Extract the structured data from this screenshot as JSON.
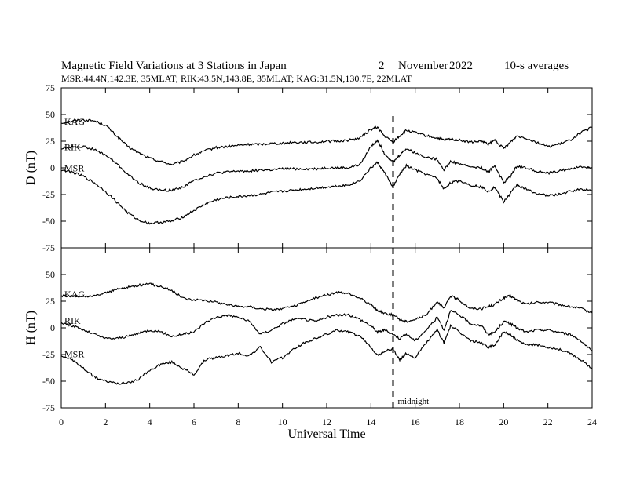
{
  "chart_data": [
    {
      "type": "line",
      "title": "Magnetic Field Variations at 3 Stations in Japan",
      "date_day": "2",
      "date_month": "November",
      "date_year": "2022",
      "averaging": "10-s averages",
      "subtitle": "MSR:44.4N,142.3E, 35MLAT;  RIK:43.5N,143.8E, 35MLAT;  KAG:31.5N,130.7E, 22MLAT",
      "ylabel": "D (nT)",
      "xlabel": "Universal Time",
      "xlim": [
        0,
        24
      ],
      "ylim": [
        -75,
        75
      ],
      "xticks": [
        0,
        2,
        4,
        6,
        8,
        10,
        12,
        14,
        16,
        18,
        20,
        22,
        24
      ],
      "yticks": [
        75,
        50,
        25,
        0,
        -25,
        -50,
        -75
      ],
      "series": [
        {
          "name": "KAG",
          "x": [
            0,
            0.5,
            1,
            1.5,
            2,
            2.5,
            3,
            3.5,
            4,
            4.5,
            5,
            5.5,
            6,
            6.5,
            7,
            7.5,
            8,
            8.5,
            9,
            9.5,
            10,
            10.5,
            11,
            11.5,
            12,
            12.5,
            13,
            13.5,
            14,
            14.3,
            14.6,
            15,
            15.3,
            15.6,
            16,
            16.5,
            17,
            17.3,
            17.6,
            18,
            18.5,
            19,
            19.3,
            19.6,
            20,
            20.3,
            20.6,
            21,
            21.5,
            22,
            22.5,
            23,
            23.5,
            24
          ],
          "values": [
            42,
            44,
            45,
            44,
            40,
            30,
            20,
            14,
            9,
            6,
            3,
            6,
            12,
            16,
            19,
            20,
            21,
            22,
            22,
            23,
            23,
            24,
            24,
            24,
            25,
            25,
            26,
            28,
            36,
            38,
            30,
            24,
            30,
            35,
            33,
            30,
            28,
            26,
            27,
            26,
            24,
            25,
            22,
            26,
            18,
            24,
            30,
            28,
            24,
            20,
            22,
            26,
            33,
            38
          ]
        },
        {
          "name": "RIK",
          "x": [
            0,
            0.5,
            1,
            1.5,
            2,
            2.5,
            3,
            3.5,
            4,
            4.5,
            5,
            5.5,
            6,
            6.5,
            7,
            7.5,
            8,
            8.5,
            9,
            9.5,
            10,
            10.5,
            11,
            11.5,
            12,
            12.5,
            13,
            13.5,
            14,
            14.3,
            14.6,
            15,
            15.3,
            15.6,
            16,
            16.5,
            17,
            17.3,
            17.6,
            18,
            18.5,
            19,
            19.3,
            19.6,
            20,
            20.3,
            20.6,
            21,
            21.5,
            22,
            22.5,
            23,
            23.5,
            24
          ],
          "values": [
            18,
            20,
            20,
            17,
            12,
            4,
            -6,
            -14,
            -19,
            -21,
            -21,
            -18,
            -12,
            -8,
            -5,
            -4,
            -3,
            -3,
            -2,
            -2,
            -1,
            -1,
            -1,
            -1,
            0,
            0,
            0,
            3,
            20,
            26,
            14,
            5,
            12,
            18,
            14,
            10,
            8,
            -2,
            6,
            4,
            1,
            0,
            -4,
            2,
            -14,
            -8,
            2,
            0,
            -3,
            -5,
            -3,
            -1,
            1,
            0
          ]
        },
        {
          "name": "MSR",
          "x": [
            0,
            0.5,
            1,
            1.5,
            2,
            2.5,
            3,
            3.5,
            4,
            4.5,
            5,
            5.5,
            6,
            6.5,
            7,
            7.5,
            8,
            8.5,
            9,
            9.5,
            10,
            10.5,
            11,
            11.5,
            12,
            12.5,
            13,
            13.5,
            14,
            14.3,
            14.6,
            15,
            15.3,
            15.6,
            16,
            16.5,
            17,
            17.3,
            17.6,
            18,
            18.5,
            19,
            19.3,
            19.6,
            20,
            20.3,
            20.6,
            21,
            21.5,
            22,
            22.5,
            23,
            23.5,
            24
          ],
          "values": [
            -2,
            -4,
            -8,
            -14,
            -22,
            -32,
            -42,
            -49,
            -52,
            -51,
            -50,
            -46,
            -40,
            -34,
            -30,
            -28,
            -27,
            -26,
            -25,
            -23,
            -22,
            -21,
            -20,
            -19,
            -18,
            -17,
            -16,
            -12,
            0,
            5,
            -4,
            -18,
            -6,
            2,
            -2,
            -6,
            -10,
            -20,
            -14,
            -12,
            -16,
            -18,
            -22,
            -18,
            -32,
            -24,
            -16,
            -20,
            -24,
            -26,
            -25,
            -22,
            -20,
            -21
          ]
        }
      ]
    },
    {
      "type": "line",
      "ylabel": "H (nT)",
      "xlabel": "Universal Time",
      "xlim": [
        0,
        24
      ],
      "ylim": [
        -75,
        75
      ],
      "xticks": [
        0,
        2,
        4,
        6,
        8,
        10,
        12,
        14,
        16,
        18,
        20,
        22,
        24
      ],
      "yticks": [
        50,
        25,
        0,
        -25,
        -50,
        -75
      ],
      "annotation": "midnight",
      "marker_x": 15,
      "series": [
        {
          "name": "KAG",
          "x": [
            0,
            0.5,
            1,
            1.5,
            2,
            2.5,
            3,
            3.5,
            4,
            4.5,
            5,
            5.5,
            6,
            6.5,
            7,
            7.5,
            8,
            8.5,
            9,
            9.5,
            10,
            10.5,
            11,
            11.5,
            12,
            12.5,
            13,
            13.5,
            14,
            14.3,
            14.6,
            15,
            15.3,
            15.6,
            16,
            16.5,
            17,
            17.3,
            17.6,
            18,
            18.5,
            19,
            19.3,
            19.6,
            20,
            20.3,
            20.6,
            21,
            21.5,
            22,
            22.5,
            23,
            23.5,
            24
          ],
          "values": [
            30,
            30,
            29,
            30,
            33,
            36,
            38,
            40,
            41,
            39,
            35,
            28,
            26,
            26,
            24,
            22,
            20,
            20,
            18,
            17,
            18,
            20,
            24,
            28,
            31,
            33,
            32,
            28,
            22,
            16,
            14,
            12,
            8,
            6,
            8,
            12,
            25,
            18,
            30,
            26,
            18,
            18,
            20,
            22,
            28,
            30,
            26,
            22,
            24,
            24,
            22,
            20,
            18,
            14
          ]
        },
        {
          "name": "RIK",
          "x": [
            0,
            0.5,
            1,
            1.5,
            2,
            2.5,
            3,
            3.5,
            4,
            4.5,
            5,
            5.5,
            6,
            6.5,
            7,
            7.5,
            8,
            8.5,
            9,
            9.5,
            10,
            10.5,
            11,
            11.5,
            12,
            12.5,
            13,
            13.5,
            14,
            14.3,
            14.6,
            15,
            15.3,
            15.6,
            16,
            16.5,
            17,
            17.3,
            17.6,
            18,
            18.5,
            19,
            19.3,
            19.6,
            20,
            20.3,
            20.6,
            21,
            21.5,
            22,
            22.5,
            23,
            23.5,
            24
          ],
          "values": [
            5,
            2,
            -2,
            -6,
            -10,
            -10,
            -8,
            -5,
            -2,
            -4,
            -8,
            -6,
            -4,
            5,
            10,
            12,
            10,
            6,
            -6,
            -2,
            4,
            8,
            8,
            6,
            10,
            12,
            12,
            8,
            2,
            -4,
            -2,
            -6,
            -10,
            -6,
            -12,
            -2,
            10,
            -2,
            16,
            12,
            4,
            2,
            -6,
            -4,
            6,
            4,
            0,
            -4,
            -2,
            -2,
            -4,
            -6,
            -12,
            -22
          ]
        },
        {
          "name": "MSR",
          "x": [
            0,
            0.5,
            1,
            1.5,
            2,
            2.5,
            3,
            3.5,
            4,
            4.5,
            5,
            5.5,
            6,
            6.5,
            7,
            7.5,
            8,
            8.5,
            9,
            9.5,
            10,
            10.5,
            11,
            11.5,
            12,
            12.5,
            13,
            13.5,
            14,
            14.3,
            14.6,
            15,
            15.3,
            15.6,
            16,
            16.5,
            17,
            17.3,
            17.6,
            18,
            18.5,
            19,
            19.3,
            19.6,
            20,
            20.3,
            20.6,
            21,
            21.5,
            22,
            22.5,
            23,
            23.5,
            24
          ],
          "values": [
            -26,
            -30,
            -38,
            -46,
            -50,
            -52,
            -52,
            -48,
            -40,
            -34,
            -32,
            -38,
            -44,
            -30,
            -28,
            -26,
            -24,
            -26,
            -18,
            -32,
            -28,
            -20,
            -14,
            -10,
            -6,
            -2,
            -4,
            -8,
            -18,
            -26,
            -22,
            -20,
            -30,
            -24,
            -28,
            -14,
            -2,
            -14,
            2,
            -4,
            -12,
            -14,
            -18,
            -16,
            -4,
            -6,
            -12,
            -16,
            -16,
            -18,
            -20,
            -24,
            -30,
            -38
          ]
        }
      ]
    }
  ]
}
